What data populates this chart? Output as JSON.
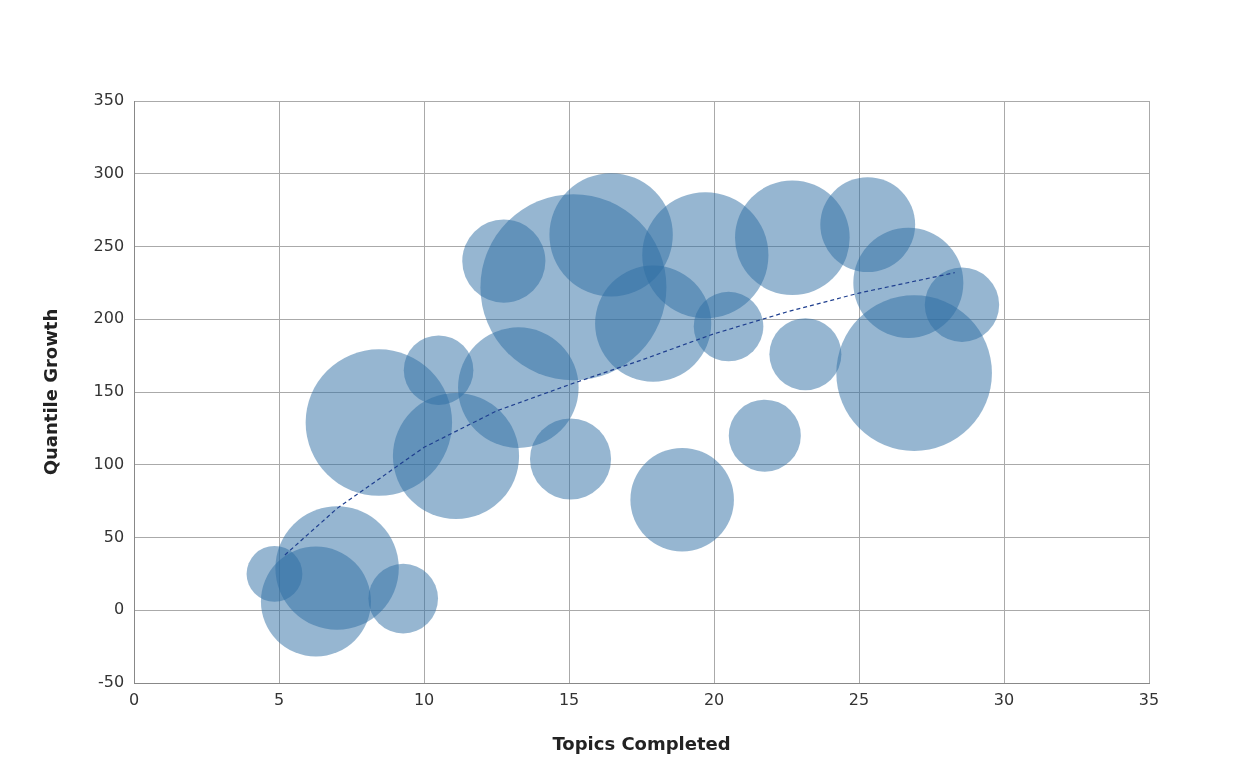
{
  "chart_data": {
    "type": "bubble",
    "xlabel": "Topics Completed",
    "ylabel": "Quantile Growth",
    "relative": false,
    "xlim": [
      0,
      35
    ],
    "xticks": [
      0,
      5,
      10,
      15,
      20,
      25,
      30,
      35
    ],
    "ylim": [
      -50,
      350
    ],
    "yticks": [
      -50,
      0,
      50,
      100,
      150,
      200,
      250,
      300,
      350
    ],
    "grid": true,
    "legend": false,
    "series": [
      {
        "color": "#2e6da4",
        "x": [
          4.84,
          6.27,
          7.0,
          9.28,
          8.44,
          10.5,
          11.1,
          12.75,
          13.25,
          15.15,
          15.05,
          16.45,
          17.9,
          19.7,
          18.9,
          20.5,
          21.75,
          23.15,
          22.7,
          25.3,
          26.7,
          26.9,
          28.55
        ],
        "values": [
          25,
          6,
          29,
          8,
          129,
          165,
          106,
          240,
          153,
          222,
          104,
          258,
          197,
          244,
          76,
          195,
          120,
          176,
          256,
          265,
          225,
          163,
          210
        ],
        "sizes": [
          0.09,
          0.35,
          0.44,
          0.14,
          0.62,
          0.14,
          0.46,
          0.2,
          0.42,
          1,
          0.19,
          0.44,
          0.39,
          0.46,
          0.31,
          0.14,
          0.15,
          0.15,
          0.38,
          0.26,
          0.35,
          0.7,
          0.16
        ]
      },
      {
        "type": "line",
        "color": "#1f3f8f",
        "line_style": "dashed",
        "marker": "none",
        "x": [
          5.2,
          7,
          10,
          12.5,
          15,
          17.5,
          20,
          22.5,
          25,
          28.3
        ],
        "values": [
          38,
          70,
          112,
          137,
          155,
          172,
          190,
          205,
          218,
          232
        ]
      }
    ]
  }
}
